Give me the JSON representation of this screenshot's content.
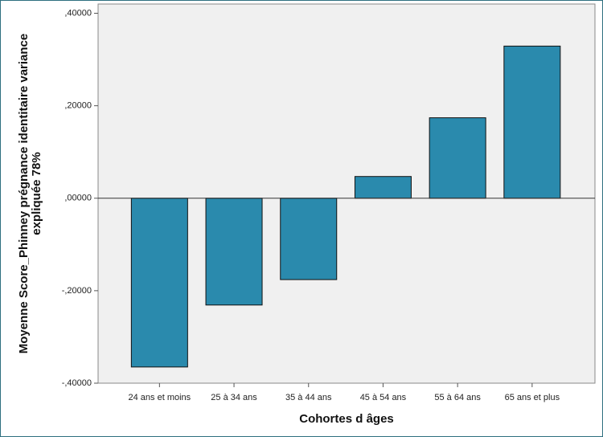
{
  "chart_data": {
    "type": "bar",
    "ylabel": [
      "Moyenne Score_Phinney prégnance identitaire variance",
      "expliquée 78%"
    ],
    "xlabel": "Cohortes d âges",
    "categories": [
      "24 ans et moins",
      "25 à 34 ans",
      "35 à 44 ans",
      "45 à 54 ans",
      "55 à 64 ans",
      "65 ans et plus"
    ],
    "values": [
      -0.365,
      -0.231,
      -0.176,
      0.047,
      0.174,
      0.329
    ],
    "color": "#2a8aad",
    "ylim": [
      -0.4,
      0.42
    ],
    "yticks": [
      {
        "value": -0.4,
        "label": "-,40000"
      },
      {
        "value": -0.2,
        "label": "-,20000"
      },
      {
        "value": 0,
        "label": ",00000"
      },
      {
        "value": 0.2,
        "label": ",20000"
      },
      {
        "value": 0.4,
        "label": ",40000"
      }
    ]
  }
}
